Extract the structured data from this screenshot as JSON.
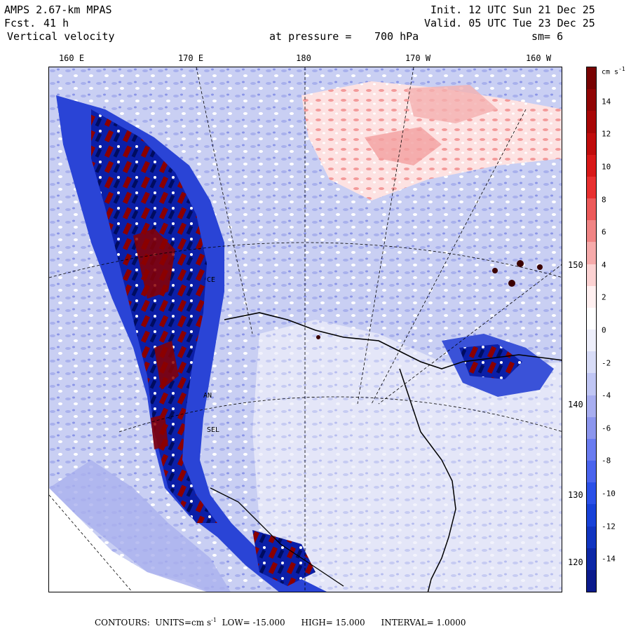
{
  "header": {
    "model": "AMPS 2.67-km MPAS",
    "fcst_label": "Fcst.",
    "fcst_value": "41 h",
    "field": "Vertical velocity",
    "level_label": "at pressure =",
    "level_value": "700 hPa",
    "init": "Init. 12 UTC Sun 21 Dec 25",
    "valid": "Valid. 05 UTC Tue 23 Dec 25",
    "smoothing": "sm= 6"
  },
  "longitude_labels": [
    "160 E",
    "170 E",
    "180",
    "170 W",
    "160 W"
  ],
  "latitude_labels": [
    "150 W",
    "140 W",
    "130 W",
    "120 W"
  ],
  "stations": [
    "CE",
    "AN",
    "SEL"
  ],
  "colorbar": {
    "unit": "cm s",
    "unit_exponent": "-1",
    "ticks": [
      "14",
      "12",
      "10",
      "8",
      "6",
      "4",
      "2",
      "0",
      "-2",
      "-4",
      "-6",
      "-8",
      "-10",
      "-12",
      "-14"
    ],
    "colors": [
      "#0a1a8c",
      "#0c27a6",
      "#1034c0",
      "#1741d8",
      "#2a50e8",
      "#4a64ee",
      "#6a7cf0",
      "#8c96ee",
      "#a8aef0",
      "#c0c6f4",
      "#d8dcf7",
      "#eeeffb",
      "#ffffff",
      "#fff0f0",
      "#fcd2d2",
      "#f6aaaa",
      "#f08484",
      "#ec5a5a",
      "#e83030",
      "#d81818",
      "#c00c0c",
      "#a80606",
      "#900404",
      "#780202"
    ]
  },
  "footer": {
    "contours_label": "CONTOURS:",
    "units_label": "UNITS=cm s",
    "units_exponent": "-1",
    "low": "LOW= -15.000",
    "high": "HIGH= 15.000",
    "interval": "INTERVAL= 1.0000"
  },
  "colors": {
    "updraft_strong": "#8b0000",
    "downdraft_strong": "#0a1a8c",
    "neutral": "#ffffff",
    "coast": "#000000"
  }
}
